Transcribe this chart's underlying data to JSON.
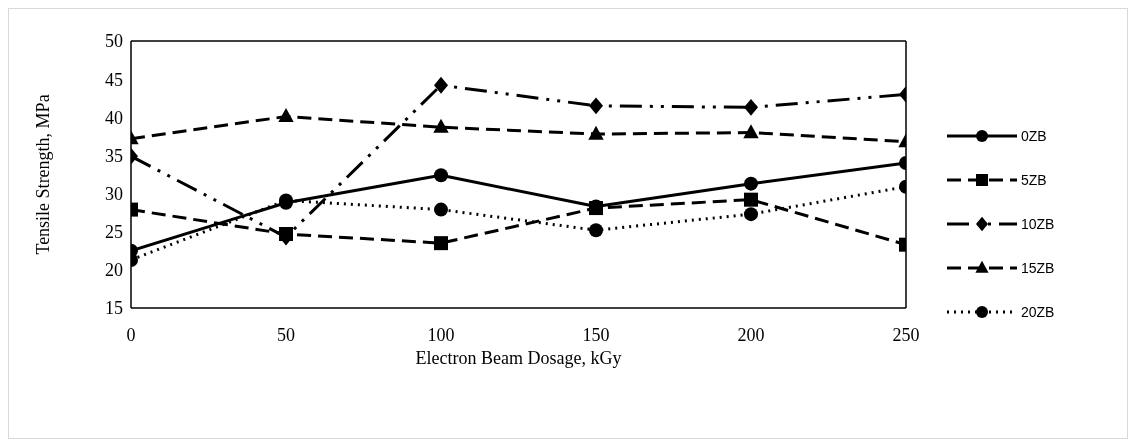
{
  "chart_data": {
    "type": "line",
    "xlabel": "Electron Beam Dosage, kGy",
    "ylabel": "Tensile Strength, MPa",
    "x": [
      0,
      50,
      100,
      150,
      200,
      250
    ],
    "xlim": [
      0,
      250
    ],
    "xticks": [
      0,
      50,
      100,
      150,
      200,
      250
    ],
    "ylim": [
      15,
      50
    ],
    "yticks": [
      15,
      20,
      25,
      30,
      35,
      40,
      45,
      50
    ],
    "grid": false,
    "legend": "right",
    "series": [
      {
        "name": "0ZB",
        "color": "#000000",
        "marker": "circle",
        "line_style": "solid",
        "values": [
          22.5,
          28.8,
          32.4,
          28.3,
          31.3,
          34.0
        ]
      },
      {
        "name": "5ZB",
        "color": "#000000",
        "marker": "square",
        "line_style": "dashed",
        "values": [
          27.9,
          24.7,
          23.5,
          28.1,
          29.2,
          23.3
        ]
      },
      {
        "name": "10ZB",
        "color": "#000000",
        "marker": "diamond",
        "line_style": "dashdotdot",
        "values": [
          34.9,
          24.3,
          44.2,
          41.5,
          41.3,
          43.0
        ]
      },
      {
        "name": "15ZB",
        "color": "#000000",
        "marker": "triangle",
        "line_style": "dashed",
        "values": [
          37.2,
          40.1,
          38.7,
          37.8,
          38.0,
          36.8
        ]
      },
      {
        "name": "20ZB",
        "color": "#000000",
        "marker": "circle",
        "line_style": "dotted",
        "values": [
          21.3,
          29.1,
          27.9,
          25.2,
          27.3,
          30.9
        ]
      }
    ]
  }
}
